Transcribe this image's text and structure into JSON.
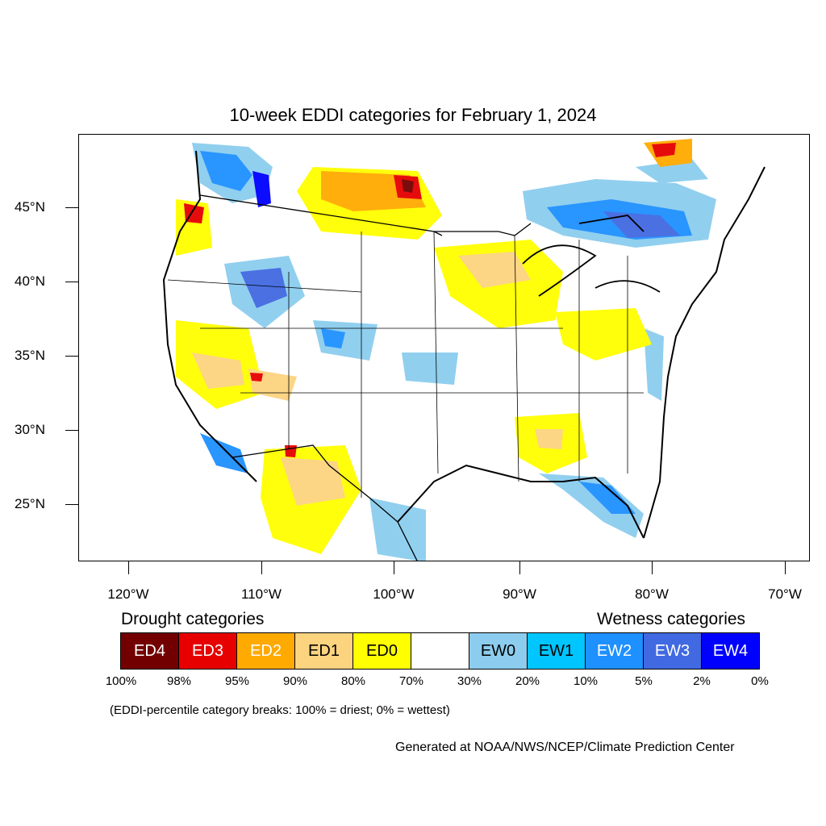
{
  "title": "10-week EDDI categories for February 1, 2024",
  "lat_labels": [
    "45°N",
    "40°N",
    "35°N",
    "30°N",
    "25°N"
  ],
  "lon_labels": [
    "120°W",
    "110°W",
    "100°W",
    "90°W",
    "80°W",
    "70°W"
  ],
  "legend": {
    "drought_heading": "Drought categories",
    "wetness_heading": "Wetness categories",
    "boxes": [
      {
        "label": "ED4",
        "color": "#730000",
        "text_color": "#ffffff"
      },
      {
        "label": "ED3",
        "color": "#e60000",
        "text_color": "#ffffff"
      },
      {
        "label": "ED2",
        "color": "#ffaa00",
        "text_color": "#ffffff"
      },
      {
        "label": "ED1",
        "color": "#fcd37f",
        "text_color": "#000000"
      },
      {
        "label": "ED0",
        "color": "#ffff00",
        "text_color": "#000000"
      },
      {
        "label": "",
        "color": "#ffffff",
        "text_color": "#000000"
      },
      {
        "label": "EW0",
        "color": "#8ccdef",
        "text_color": "#000000"
      },
      {
        "label": "EW1",
        "color": "#00c5ff",
        "text_color": "#000000"
      },
      {
        "label": "EW2",
        "color": "#1e90ff",
        "text_color": "#ffffff"
      },
      {
        "label": "EW3",
        "color": "#4169e1",
        "text_color": "#ffffff"
      },
      {
        "label": "EW4",
        "color": "#0000ff",
        "text_color": "#ffffff"
      }
    ],
    "breaks": [
      "100%",
      "98%",
      "95%",
      "90%",
      "80%",
      "70%",
      "30%",
      "20%",
      "10%",
      "5%",
      "2%",
      "0%"
    ]
  },
  "note": "(EDDI-percentile category breaks: 100% = driest; 0% = wettest)",
  "credit": "Generated at NOAA/NWS/NCEP/Climate Prediction Center"
}
